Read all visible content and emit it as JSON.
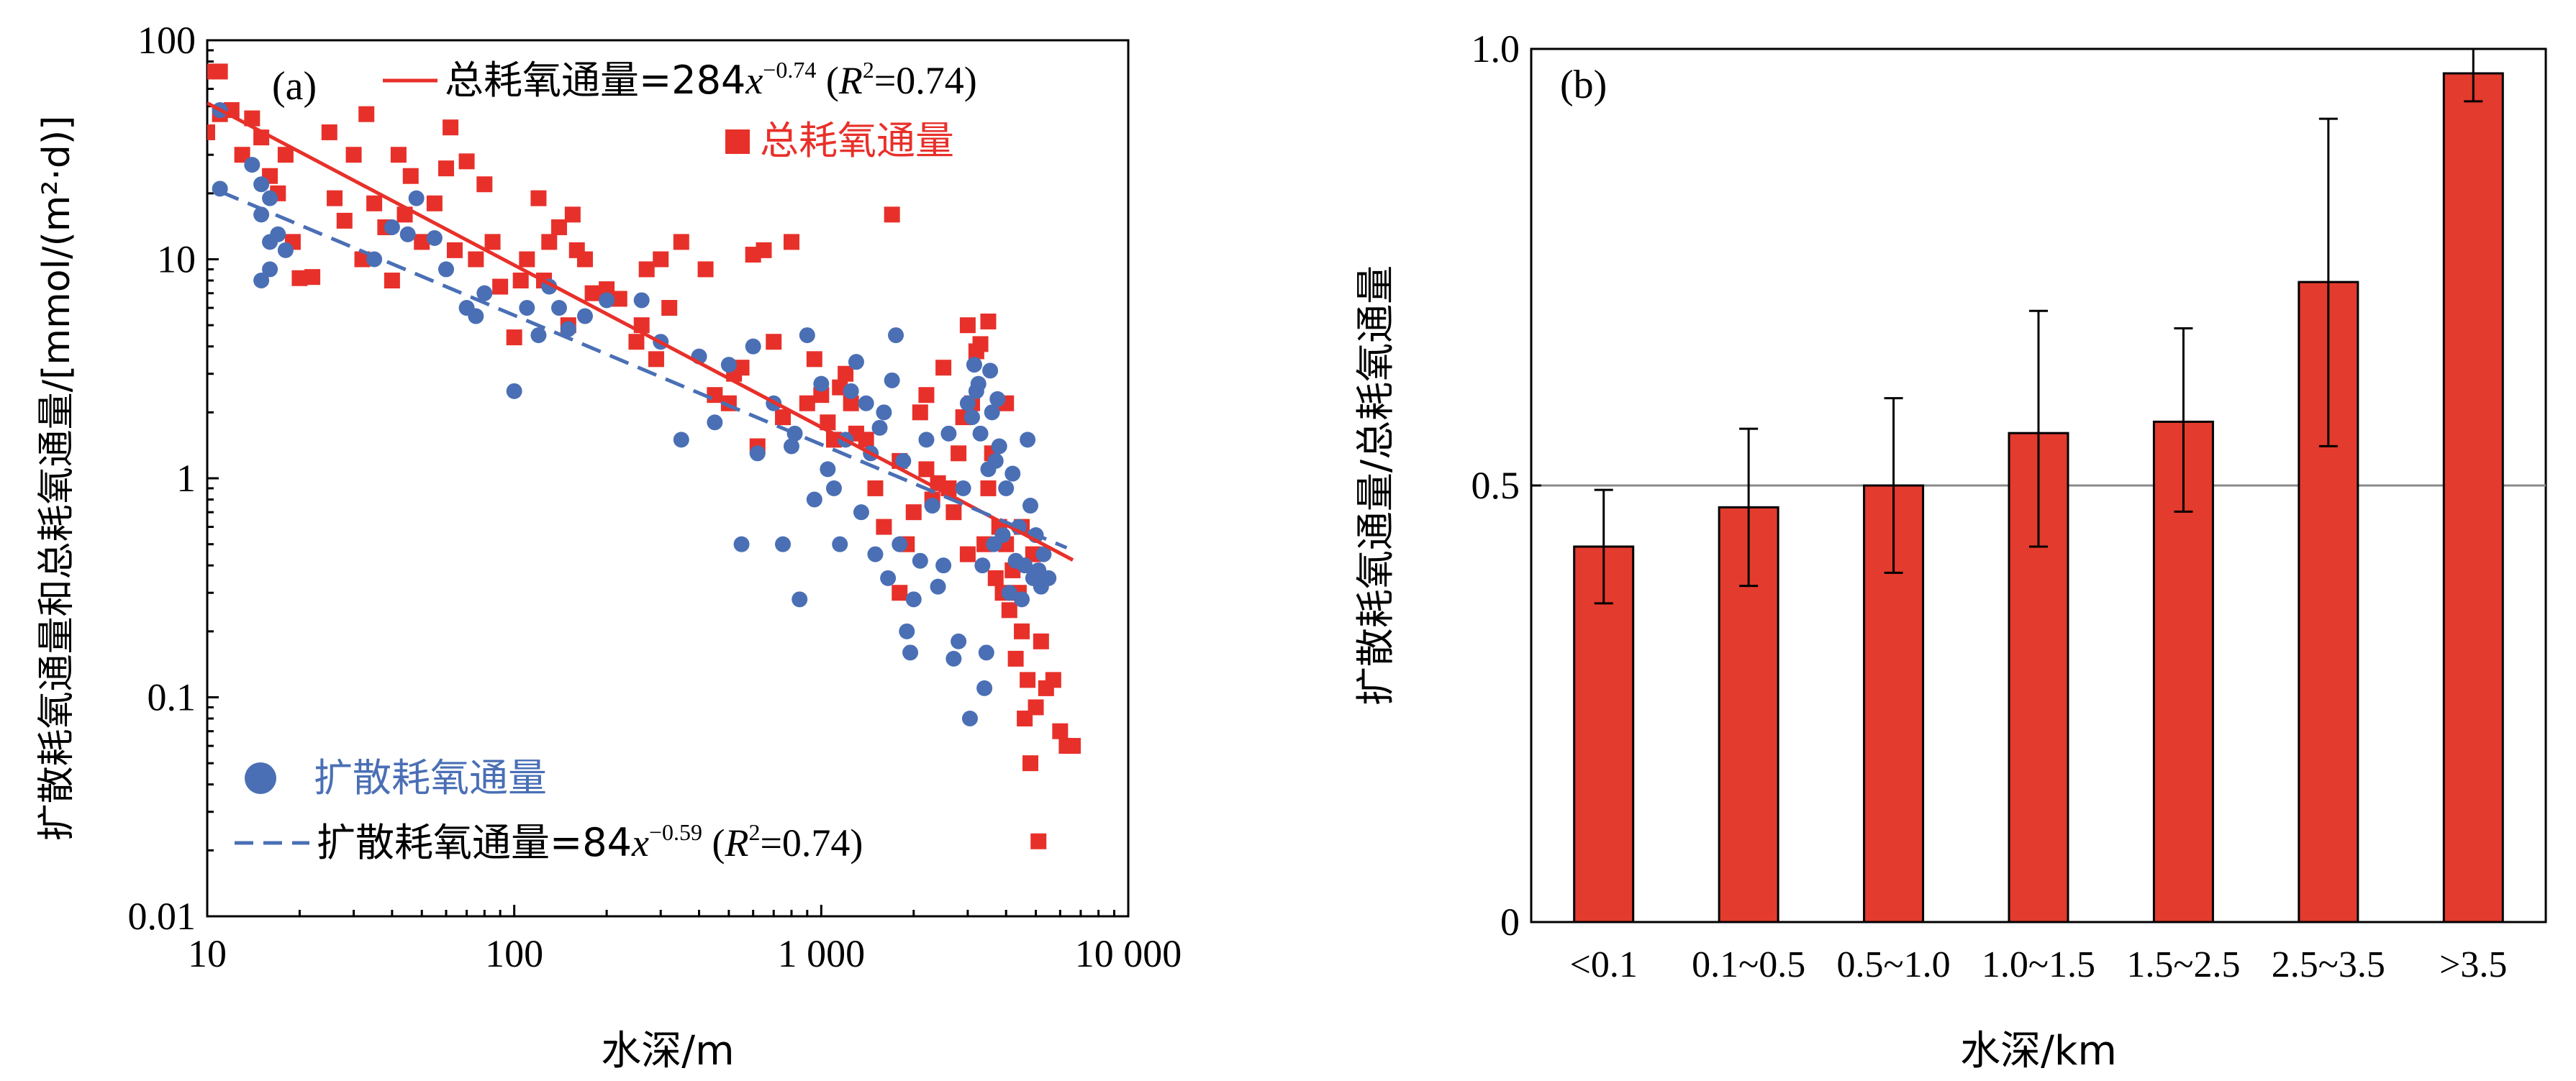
{
  "chart_data": [
    {
      "panel": "(a)",
      "type": "scatter",
      "xscale": "log",
      "yscale": "log",
      "xlim": [
        10,
        10000
      ],
      "ylim": [
        0.01,
        100
      ],
      "xlabel": "水深/m",
      "ylabel": "扩散耗氧通量和总耗氧通量/[mmol/(m²·d)]",
      "xticks": [
        "10",
        "100",
        "1 000",
        "10 000"
      ],
      "yticks": [
        "0.01",
        "0.1",
        "1",
        "10",
        "100"
      ],
      "colors": {
        "total": "#e8302a",
        "diffusive": "#4a6fb5"
      },
      "series": [
        {
          "name": "总耗氧通量",
          "marker": "square",
          "points": [
            [
              10,
              72
            ],
            [
              11,
              72
            ],
            [
              10,
              38
            ],
            [
              11,
              46
            ],
            [
              12,
              48
            ],
            [
              13,
              30
            ],
            [
              14,
              44
            ],
            [
              15,
              36
            ],
            [
              16,
              24
            ],
            [
              17,
              20
            ],
            [
              18,
              30
            ],
            [
              19,
              12
            ],
            [
              20,
              8.2
            ],
            [
              22,
              8.3
            ],
            [
              25,
              38
            ],
            [
              26,
              19
            ],
            [
              28,
              15
            ],
            [
              30,
              30
            ],
            [
              32,
              10
            ],
            [
              33,
              46
            ],
            [
              35,
              18
            ],
            [
              38,
              14
            ],
            [
              40,
              8
            ],
            [
              42,
              30
            ],
            [
              44,
              16
            ],
            [
              46,
              24
            ],
            [
              50,
              12
            ],
            [
              55,
              18
            ],
            [
              60,
              26
            ],
            [
              62,
              40
            ],
            [
              64,
              11
            ],
            [
              70,
              28
            ],
            [
              75,
              10
            ],
            [
              80,
              22
            ],
            [
              85,
              12
            ],
            [
              90,
              7.5
            ],
            [
              100,
              4.4
            ],
            [
              105,
              8
            ],
            [
              110,
              10
            ],
            [
              120,
              19
            ],
            [
              125,
              8
            ],
            [
              130,
              12
            ],
            [
              140,
              14
            ],
            [
              150,
              5
            ],
            [
              155,
              16
            ],
            [
              160,
              11
            ],
            [
              170,
              10
            ],
            [
              180,
              7
            ],
            [
              200,
              7.3
            ],
            [
              220,
              6.6
            ],
            [
              250,
              4.2
            ],
            [
              260,
              5
            ],
            [
              270,
              9
            ],
            [
              290,
              3.5
            ],
            [
              300,
              10
            ],
            [
              320,
              6
            ],
            [
              350,
              12
            ],
            [
              420,
              9
            ],
            [
              450,
              2.4
            ],
            [
              500,
              2.2
            ],
            [
              520,
              3
            ],
            [
              550,
              3.2
            ],
            [
              600,
              10.5
            ],
            [
              620,
              1.4
            ],
            [
              650,
              11
            ],
            [
              700,
              4.2
            ],
            [
              750,
              1.9
            ],
            [
              800,
              12
            ],
            [
              900,
              2.2
            ],
            [
              950,
              3.5
            ],
            [
              1000,
              2.4
            ],
            [
              1050,
              1.8
            ],
            [
              1100,
              1.5
            ],
            [
              1150,
              2.6
            ],
            [
              1200,
              3
            ],
            [
              1250,
              2.2
            ],
            [
              1300,
              1.6
            ],
            [
              1400,
              1.5
            ],
            [
              1500,
              0.9
            ],
            [
              1600,
              0.6
            ],
            [
              1700,
              16
            ],
            [
              1800,
              1.2
            ],
            [
              1900,
              0.5
            ],
            [
              2000,
              0.7
            ],
            [
              2100,
              2
            ],
            [
              2200,
              1.1
            ],
            [
              2300,
              0.8
            ],
            [
              2400,
              0.95
            ],
            [
              2500,
              3.2
            ],
            [
              2600,
              0.9
            ],
            [
              2700,
              0.7
            ],
            [
              2800,
              1.3
            ],
            [
              2900,
              1.9
            ],
            [
              3000,
              0.45
            ],
            [
              3100,
              2.2
            ],
            [
              3200,
              3.8
            ],
            [
              3300,
              4.1
            ],
            [
              3400,
              0.5
            ],
            [
              3500,
              0.9
            ],
            [
              3600,
              1.3
            ],
            [
              3700,
              0.35
            ],
            [
              3800,
              0.6
            ],
            [
              3900,
              0.3
            ],
            [
              4000,
              0.5
            ],
            [
              4100,
              0.25
            ],
            [
              4200,
              0.38
            ],
            [
              4300,
              0.15
            ],
            [
              4400,
              0.3
            ],
            [
              4500,
              0.2
            ],
            [
              4600,
              0.08
            ],
            [
              4700,
              0.12
            ],
            [
              4800,
              0.05
            ],
            [
              4900,
              0.45
            ],
            [
              5000,
              0.09
            ],
            [
              5100,
              0.022
            ],
            [
              5200,
              0.18
            ],
            [
              5400,
              0.11
            ],
            [
              5700,
              0.12
            ],
            [
              6000,
              0.07
            ],
            [
              6300,
              0.06
            ],
            [
              6600,
              0.06
            ],
            [
              3000,
              5
            ],
            [
              3500,
              5.2
            ],
            [
              4000,
              2.2
            ],
            [
              4500,
              0.6
            ],
            [
              2200,
              2.4
            ],
            [
              1800,
              0.3
            ]
          ]
        },
        {
          "name": "扩散耗氧通量",
          "marker": "circle",
          "points": [
            [
              11,
              48
            ],
            [
              11,
              21
            ],
            [
              14,
              27
            ],
            [
              15,
              22
            ],
            [
              15,
              16
            ],
            [
              16,
              12
            ],
            [
              16,
              9
            ],
            [
              15,
              8
            ],
            [
              16,
              19
            ],
            [
              17,
              13
            ],
            [
              18,
              11
            ],
            [
              35,
              10
            ],
            [
              40,
              14
            ],
            [
              45,
              13
            ],
            [
              48,
              19
            ],
            [
              55,
              12.5
            ],
            [
              60,
              9
            ],
            [
              70,
              6
            ],
            [
              75,
              5.5
            ],
            [
              80,
              7
            ],
            [
              100,
              2.5
            ],
            [
              110,
              6
            ],
            [
              120,
              4.5
            ],
            [
              130,
              7.5
            ],
            [
              140,
              6
            ],
            [
              150,
              4.8
            ],
            [
              170,
              5.5
            ],
            [
              200,
              6.5
            ],
            [
              260,
              6.5
            ],
            [
              300,
              4.2
            ],
            [
              350,
              1.5
            ],
            [
              400,
              3.6
            ],
            [
              450,
              1.8
            ],
            [
              500,
              3.3
            ],
            [
              550,
              0.5
            ],
            [
              600,
              4
            ],
            [
              620,
              1.3
            ],
            [
              700,
              2.2
            ],
            [
              750,
              0.5
            ],
            [
              800,
              1.4
            ],
            [
              820,
              1.6
            ],
            [
              850,
              0.28
            ],
            [
              900,
              4.5
            ],
            [
              950,
              0.8
            ],
            [
              1000,
              2.7
            ],
            [
              1050,
              1.1
            ],
            [
              1100,
              0.9
            ],
            [
              1150,
              0.5
            ],
            [
              1200,
              1.5
            ],
            [
              1250,
              2.5
            ],
            [
              1300,
              3.4
            ],
            [
              1350,
              0.7
            ],
            [
              1400,
              2.2
            ],
            [
              1450,
              1.3
            ],
            [
              1500,
              0.45
            ],
            [
              1550,
              1.7
            ],
            [
              1600,
              2
            ],
            [
              1650,
              0.35
            ],
            [
              1700,
              2.8
            ],
            [
              1750,
              4.5
            ],
            [
              1800,
              0.5
            ],
            [
              1850,
              1.2
            ],
            [
              1900,
              0.2
            ],
            [
              1950,
              0.16
            ],
            [
              2000,
              0.28
            ],
            [
              2100,
              0.42
            ],
            [
              2200,
              1.5
            ],
            [
              2300,
              0.75
            ],
            [
              2400,
              0.32
            ],
            [
              2500,
              0.4
            ],
            [
              2600,
              1.6
            ],
            [
              2700,
              0.15
            ],
            [
              2800,
              0.18
            ],
            [
              2900,
              0.9
            ],
            [
              3000,
              2.2
            ],
            [
              3050,
              0.08
            ],
            [
              3100,
              1.9
            ],
            [
              3150,
              3.3
            ],
            [
              3200,
              2.5
            ],
            [
              3250,
              2.7
            ],
            [
              3300,
              1.6
            ],
            [
              3350,
              0.4
            ],
            [
              3400,
              0.11
            ],
            [
              3450,
              0.16
            ],
            [
              3500,
              1.1
            ],
            [
              3550,
              3.1
            ],
            [
              3600,
              2
            ],
            [
              3650,
              0.5
            ],
            [
              3700,
              1.2
            ],
            [
              3750,
              2.3
            ],
            [
              3800,
              1.4
            ],
            [
              3900,
              0.55
            ],
            [
              4000,
              0.9
            ],
            [
              4100,
              0.3
            ],
            [
              4200,
              1.05
            ],
            [
              4300,
              0.42
            ],
            [
              4400,
              0.6
            ],
            [
              4500,
              0.28
            ],
            [
              4600,
              0.4
            ],
            [
              4700,
              1.5
            ],
            [
              4800,
              0.75
            ],
            [
              4900,
              0.35
            ],
            [
              5000,
              0.55
            ],
            [
              5100,
              0.38
            ],
            [
              5200,
              0.32
            ],
            [
              5300,
              0.45
            ],
            [
              5500,
              0.35
            ]
          ]
        }
      ],
      "fits": [
        {
          "name": "总耗氧通量",
          "label_var": "x",
          "label_exp": "−0.74",
          "label_r2": "R",
          "a": 284,
          "b": -0.74,
          "x_range": [
            10,
            6600
          ],
          "style": "solid",
          "label_prefix": "总耗氧通量=284",
          "label_suffix": " (",
          "r2_value": "=0.74)"
        },
        {
          "name": "扩散耗氧通量",
          "label_var": "x",
          "label_exp": "−0.59",
          "label_r2": "R",
          "a": 84,
          "b": -0.59,
          "x_range": [
            11,
            6300
          ],
          "style": "dashed",
          "label_prefix": "扩散耗氧通量=84",
          "label_suffix": " (",
          "r2_value": "=0.74)"
        }
      ]
    },
    {
      "panel": "(b)",
      "type": "bar",
      "categories": [
        "<0.1",
        "0.1~0.5",
        "0.5~1.0",
        "1.0~1.5",
        "1.5~2.5",
        "2.5~3.5",
        ">3.5"
      ],
      "values": [
        0.43,
        0.475,
        0.5,
        0.56,
        0.573,
        0.733,
        0.972
      ],
      "errors": [
        [
          0.365,
          0.495
        ],
        [
          0.385,
          0.565
        ],
        [
          0.4,
          0.6
        ],
        [
          0.43,
          0.7
        ],
        [
          0.47,
          0.68
        ],
        [
          0.545,
          0.92
        ],
        [
          0.94,
          1.0
        ]
      ],
      "ylim": [
        0,
        1.0
      ],
      "yticks": [
        "0",
        "0.5",
        "1.0"
      ],
      "reference_line": 0.5,
      "xlabel": "水深/km",
      "ylabel": "扩散耗氧通量/总耗氧通量",
      "colors": {
        "bar": "#e33b2e",
        "bar_edge": "#000000",
        "ref_line": "#8a8a8a"
      }
    }
  ]
}
